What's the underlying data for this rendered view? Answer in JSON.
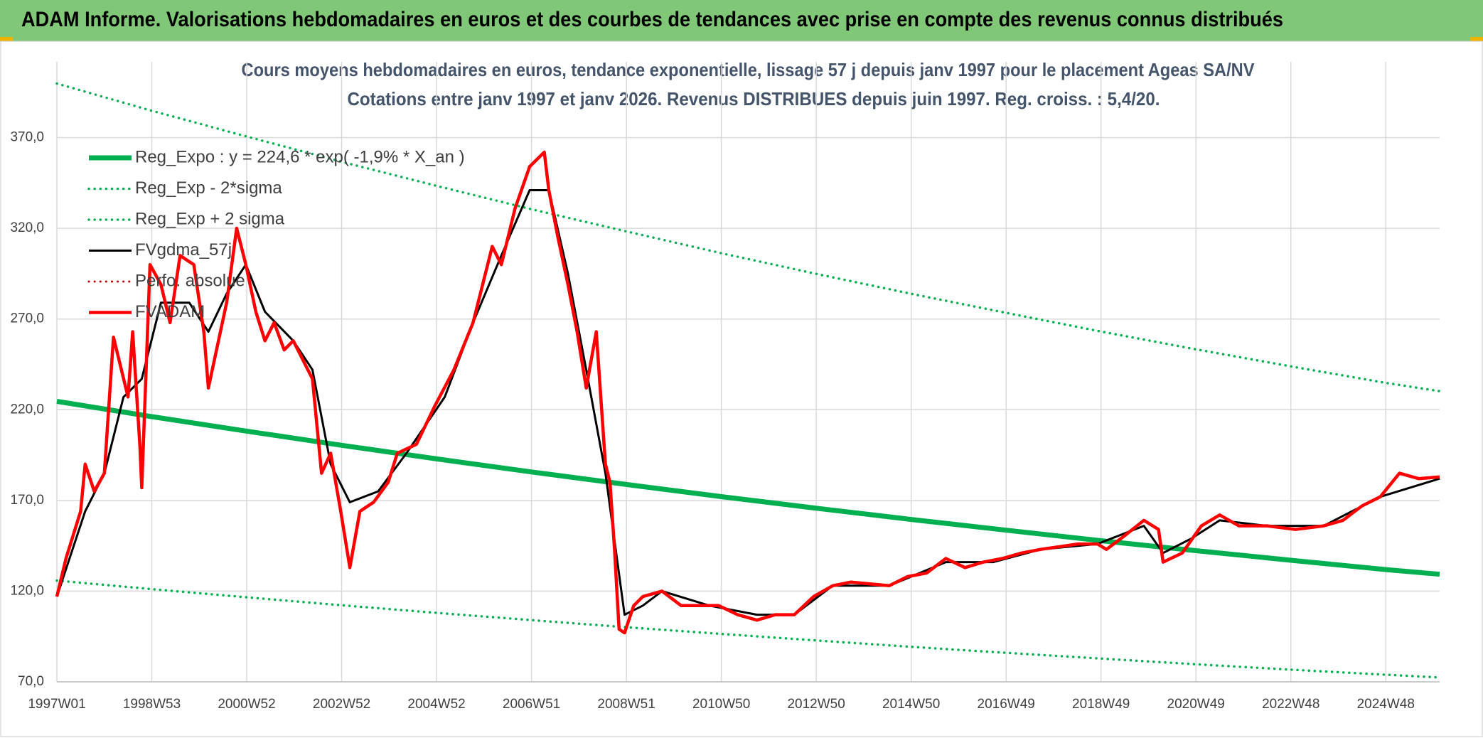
{
  "header": {
    "title": "ADAM Informe. Valorisations hebdomadaires en euros et des courbes de tendances avec prise en compte des revenus connus distribués"
  },
  "chart_data": {
    "type": "line",
    "title": "Cours moyens hebdomadaires en euros, tendance exponentielle, lissage 57 j depuis janv 1997 pour le placement Ageas SA/NV",
    "subtitle": "Cotations entre janv 1997 et janv 2026. Revenus DISTRIBUES depuis juin 1997. Reg. croiss. : 5,4/20.",
    "xlim": [
      0,
      1515
    ],
    "ylim": [
      70,
      400
    ],
    "xticks": [
      {
        "value": 0,
        "label": "1997W01"
      },
      {
        "value": 104,
        "label": "1998W53"
      },
      {
        "value": 208,
        "label": "2000W52"
      },
      {
        "value": 312,
        "label": "2002W52"
      },
      {
        "value": 416,
        "label": "2004W52"
      },
      {
        "value": 520,
        "label": "2006W51"
      },
      {
        "value": 624,
        "label": "2008W51"
      },
      {
        "value": 728,
        "label": "2010W50"
      },
      {
        "value": 832,
        "label": "2012W50"
      },
      {
        "value": 936,
        "label": "2014W50"
      },
      {
        "value": 1040,
        "label": "2016W49"
      },
      {
        "value": 1144,
        "label": "2018W49"
      },
      {
        "value": 1248,
        "label": "2020W49"
      },
      {
        "value": 1352,
        "label": "2022W48"
      },
      {
        "value": 1456,
        "label": "2024W48"
      }
    ],
    "yticks": [
      {
        "value": 70,
        "label": "70,0"
      },
      {
        "value": 120,
        "label": "120,0"
      },
      {
        "value": 170,
        "label": "170,0"
      },
      {
        "value": 220,
        "label": "220,0"
      },
      {
        "value": 270,
        "label": "270,0"
      },
      {
        "value": 320,
        "label": "320,0"
      },
      {
        "value": 370,
        "label": "370,0"
      }
    ],
    "grid": true,
    "legend": "upper left",
    "series": [
      {
        "name": "Reg_Expo : y = 224,6 * exp( -1,9% *  X_an )",
        "color": "#00b050",
        "dotted": false,
        "x": [
          0,
          104,
          208,
          312,
          416,
          520,
          624,
          728,
          832,
          936,
          1040,
          1144,
          1248,
          1352,
          1456,
          1515
        ],
        "values": [
          224.6,
          216.2,
          208.2,
          200.4,
          192.9,
          185.7,
          178.8,
          172.1,
          165.7,
          159.5,
          153.6,
          147.8,
          142.3,
          137.0,
          131.9,
          129.3
        ]
      },
      {
        "name": "Reg_Exp - 2*sigma",
        "color": "#00b050",
        "dotted": true,
        "x": [
          0,
          104,
          208,
          312,
          416,
          520,
          624,
          728,
          832,
          936,
          1040,
          1144,
          1248,
          1352,
          1456,
          1515
        ],
        "values": [
          125.8,
          121.1,
          116.6,
          112.2,
          108.0,
          104.0,
          100.1,
          96.4,
          92.8,
          89.3,
          86.0,
          82.8,
          79.7,
          76.7,
          73.9,
          72.4
        ]
      },
      {
        "name": "Reg_Exp + 2 sigma",
        "color": "#00b050",
        "dotted": true,
        "x": [
          0,
          104,
          208,
          312,
          416,
          520,
          624,
          728,
          832,
          936,
          1040,
          1144,
          1248,
          1352,
          1456,
          1515
        ],
        "values": [
          399.8,
          384.8,
          370.6,
          356.7,
          343.4,
          330.5,
          318.3,
          306.3,
          294.9,
          283.9,
          273.4,
          263.1,
          253.3,
          243.9,
          234.8,
          230.2
        ]
      },
      {
        "name": "FVgdma_57j",
        "color": "#000000",
        "dotted": false,
        "x": [
          0,
          31,
          52,
          73,
          93,
          114,
          145,
          166,
          186,
          207,
          228,
          259,
          280,
          300,
          321,
          352,
          383,
          425,
          456,
          487,
          518,
          539,
          560,
          580,
          601,
          622,
          642,
          663,
          715,
          767,
          808,
          850,
          912,
          974,
          1026,
          1078,
          1140,
          1191,
          1212,
          1243,
          1274,
          1326,
          1388,
          1450,
          1515
        ],
        "values": [
          117,
          164,
          185,
          227,
          237,
          279,
          279,
          263,
          284,
          300,
          274,
          258,
          242,
          190,
          169,
          175,
          196,
          227,
          268,
          305,
          341,
          341,
          295,
          242,
          185,
          107,
          112,
          120,
          112,
          107,
          107,
          123,
          123,
          136,
          136,
          143,
          146,
          156,
          141,
          149,
          159,
          156,
          156,
          172,
          182
        ]
      },
      {
        "name": "Perfo. absolue",
        "color": "#c00000",
        "dotted": true,
        "x": [],
        "values": []
      },
      {
        "name": "FVADAM",
        "color": "#ff0000",
        "dotted": false,
        "x": [
          0,
          10,
          26,
          31,
          41,
          52,
          62,
          78,
          83,
          91,
          93,
          102,
          114,
          124,
          135,
          150,
          161,
          166,
          186,
          197,
          207,
          218,
          228,
          238,
          249,
          259,
          269,
          280,
          290,
          300,
          311,
          321,
          332,
          347,
          363,
          373,
          394,
          414,
          435,
          456,
          477,
          487,
          502,
          518,
          534,
          539,
          549,
          560,
          570,
          580,
          591,
          601,
          606,
          611,
          616,
          622,
          632,
          642,
          663,
          684,
          705,
          725,
          746,
          767,
          787,
          808,
          829,
          850,
          870,
          912,
          932,
          953,
          974,
          995,
          1015,
          1036,
          1057,
          1078,
          1119,
          1140,
          1150,
          1171,
          1191,
          1207,
          1212,
          1233,
          1254,
          1274,
          1295,
          1326,
          1357,
          1388,
          1409,
          1430,
          1450,
          1471,
          1492,
          1515
        ],
        "values": [
          117,
          138,
          164,
          190,
          175,
          185,
          260,
          227,
          263,
          200,
          177,
          300,
          289,
          268,
          305,
          300,
          263,
          232,
          279,
          320,
          300,
          274,
          258,
          268,
          253,
          258,
          248,
          237,
          185,
          196,
          164,
          133,
          164,
          169,
          180,
          196,
          201,
          222,
          242,
          268,
          310,
          300,
          331,
          354,
          362,
          341,
          315,
          289,
          263,
          232,
          263,
          190,
          180,
          143,
          99,
          97,
          112,
          117,
          120,
          112,
          112,
          112,
          107,
          104,
          107,
          107,
          117,
          123,
          125,
          123,
          128,
          130,
          138,
          133,
          136,
          138,
          141,
          143,
          146,
          146,
          143,
          151,
          159,
          154,
          136,
          141,
          156,
          162,
          156,
          156,
          154,
          156,
          159,
          167,
          172,
          185,
          182,
          183
        ]
      }
    ]
  }
}
